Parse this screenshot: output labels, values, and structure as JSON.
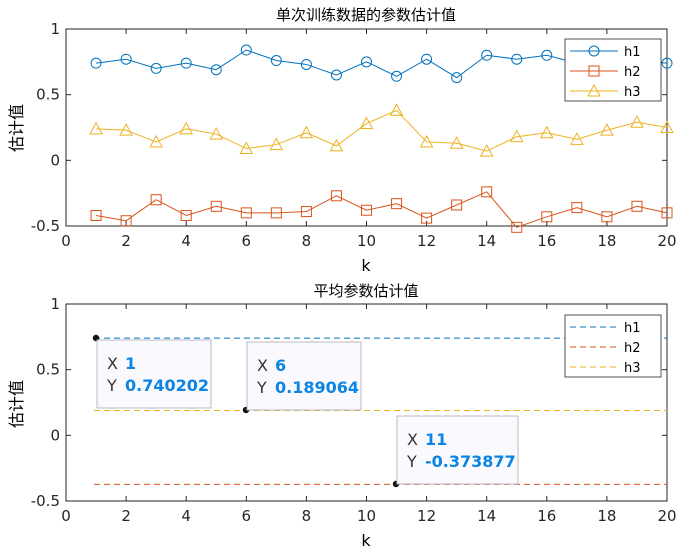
{
  "chart_data": [
    {
      "type": "line",
      "title": "单次训练数据的参数估计值",
      "xlabel": "k",
      "ylabel": "估计值",
      "xlim": [
        0,
        20
      ],
      "ylim": [
        -0.5,
        1
      ],
      "xticks": [
        "0",
        "2",
        "4",
        "6",
        "8",
        "10",
        "12",
        "14",
        "16",
        "18",
        "20"
      ],
      "yticks": [
        "-0.5",
        "0",
        "0.5",
        "1"
      ],
      "x": [
        1,
        2,
        3,
        4,
        5,
        6,
        7,
        8,
        9,
        10,
        11,
        12,
        13,
        14,
        15,
        16,
        17,
        18,
        19,
        20
      ],
      "series": [
        {
          "name": "h1",
          "color": "#0072bd",
          "marker": "circle",
          "values": [
            0.74,
            0.77,
            0.7,
            0.74,
            0.69,
            0.84,
            0.76,
            0.73,
            0.65,
            0.75,
            0.64,
            0.77,
            0.63,
            0.8,
            0.77,
            0.8,
            0.74,
            0.71,
            0.76,
            0.74
          ]
        },
        {
          "name": "h2",
          "color": "#d95319",
          "marker": "square",
          "values": [
            -0.42,
            -0.46,
            -0.3,
            -0.42,
            -0.35,
            -0.4,
            -0.4,
            -0.39,
            -0.27,
            -0.38,
            -0.33,
            -0.44,
            -0.34,
            -0.24,
            -0.51,
            -0.43,
            -0.36,
            -0.43,
            -0.35,
            -0.4
          ]
        },
        {
          "name": "h3",
          "color": "#edb120",
          "marker": "triangle",
          "values": [
            0.24,
            0.23,
            0.14,
            0.24,
            0.2,
            0.09,
            0.12,
            0.21,
            0.11,
            0.28,
            0.38,
            0.14,
            0.13,
            0.07,
            0.18,
            0.21,
            0.16,
            0.23,
            0.29,
            0.25
          ]
        }
      ],
      "legend": "top-right",
      "grid": false
    },
    {
      "type": "line",
      "title": "平均参数估计值",
      "xlabel": "k",
      "ylabel": "估计值",
      "xlim": [
        0,
        20
      ],
      "ylim": [
        -0.5,
        1
      ],
      "xticks": [
        "0",
        "2",
        "4",
        "6",
        "8",
        "10",
        "12",
        "14",
        "16",
        "18",
        "20"
      ],
      "yticks": [
        "-0.5",
        "0",
        "0.5",
        "1"
      ],
      "series": [
        {
          "name": "h1",
          "color": "#0072bd",
          "style": "dashed",
          "value": 0.740202
        },
        {
          "name": "h2",
          "color": "#d95319",
          "style": "dashed",
          "value": -0.373877
        },
        {
          "name": "h3",
          "color": "#edb120",
          "style": "dashed",
          "value": 0.189064
        }
      ],
      "legend": "top-right",
      "grid": false,
      "datatips": [
        {
          "x_label": "X",
          "x_value": "1",
          "y_label": "Y",
          "y_value": "0.740202",
          "x": 1,
          "y": 0.740202
        },
        {
          "x_label": "X",
          "x_value": "6",
          "y_label": "Y",
          "y_value": "0.189064",
          "x": 6,
          "y": 0.189064
        },
        {
          "x_label": "X",
          "x_value": "11",
          "y_label": "Y",
          "y_value": "-0.373877",
          "x": 11,
          "y": -0.373877
        }
      ]
    }
  ]
}
